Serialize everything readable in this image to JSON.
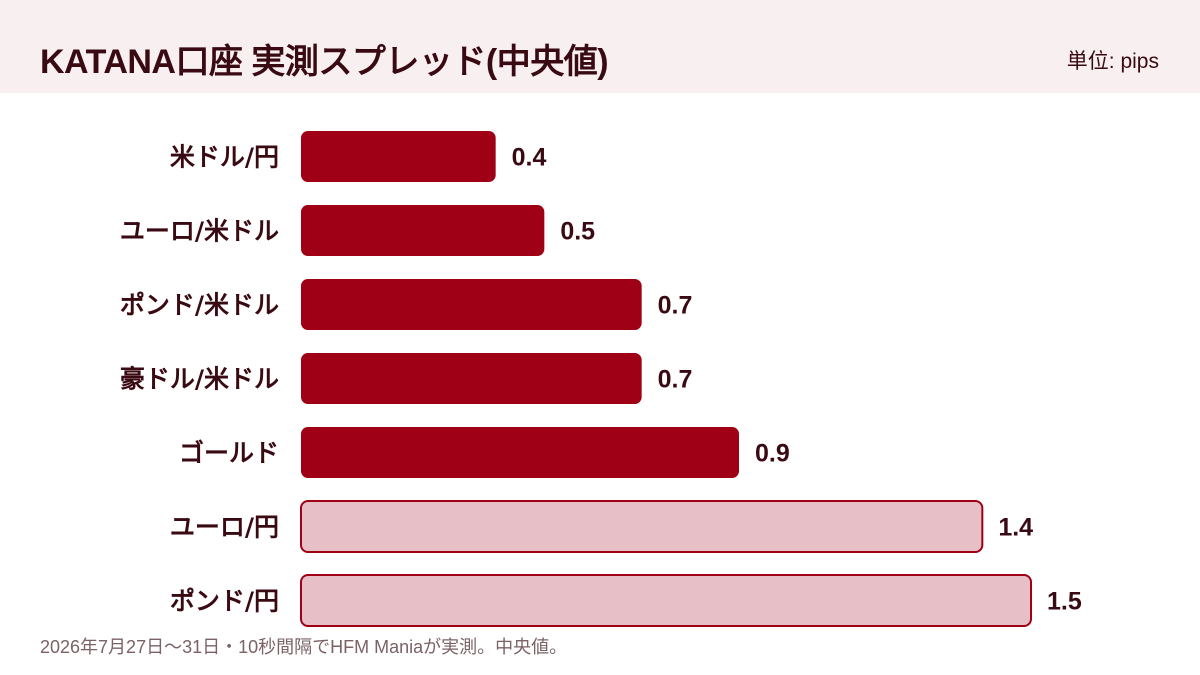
{
  "header": {
    "title": "KATANA口座 実測スプレッド(中央値)",
    "unit_label": "単位: pips"
  },
  "footnote": "2026年7月27日〜31日・10秒間隔でHFM Maniaが実測。中央値。",
  "colors": {
    "header_bg": "#f8eff0",
    "bar_primary_fill": "#a00016",
    "bar_secondary_fill": "#e6c0c6",
    "bar_secondary_stroke": "#a00016",
    "text": "#3a0a12"
  },
  "chart_data": {
    "type": "bar",
    "orientation": "horizontal",
    "categories": [
      "米ドル/円",
      "ユーロ/米ドル",
      "ポンド/米ドル",
      "豪ドル/米ドル",
      "ゴールド",
      "ユーロ/円",
      "ポンド/円"
    ],
    "values": [
      0.4,
      0.5,
      0.7,
      0.7,
      0.9,
      1.4,
      1.5
    ],
    "value_labels": [
      "0.4",
      "0.5",
      "0.7",
      "0.7",
      "0.9",
      "1.4",
      "1.5"
    ],
    "bar_style": [
      "primary",
      "primary",
      "primary",
      "primary",
      "primary",
      "secondary",
      "secondary"
    ],
    "title": "KATANA口座 実測スプレッド(中央値)",
    "unit": "単位: pips",
    "xlim": [
      0,
      1.5
    ],
    "grid": false,
    "legend": "none"
  }
}
